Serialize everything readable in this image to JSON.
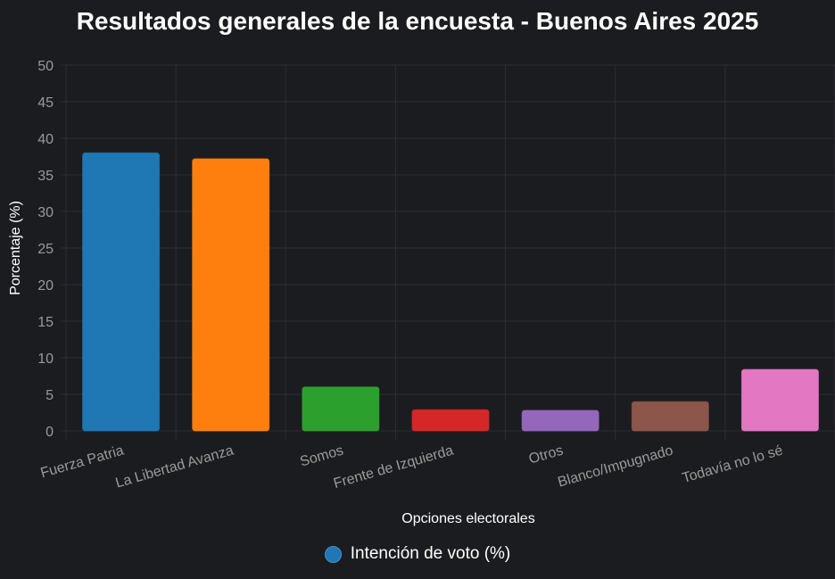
{
  "chart_data": {
    "type": "bar",
    "title": "Resultados generales de la encuesta - Buenos Aires 2025",
    "xlabel": "Opciones electorales",
    "ylabel": "Porcentaje (%)",
    "ylim": [
      0,
      50
    ],
    "yticks": [
      0,
      5,
      10,
      15,
      20,
      25,
      30,
      35,
      40,
      45,
      50
    ],
    "grid": true,
    "legend_position": "bottom",
    "categories": [
      "Fuerza Patria",
      "La Libertad Avanza",
      "Somos",
      "Frente de Izquierda",
      "Otros",
      "Blanco/Impugnado",
      "Todavía no lo sé"
    ],
    "series": [
      {
        "name": "Intención de voto (%)",
        "values": [
          38,
          37.2,
          6,
          2.9,
          2.8,
          4,
          8.4
        ]
      }
    ],
    "colors": [
      "#1f77b4",
      "#ff7f0e",
      "#2ca02c",
      "#d62728",
      "#9467bd",
      "#8c564b",
      "#e377c2"
    ],
    "legend_color": "#1f77b4"
  }
}
